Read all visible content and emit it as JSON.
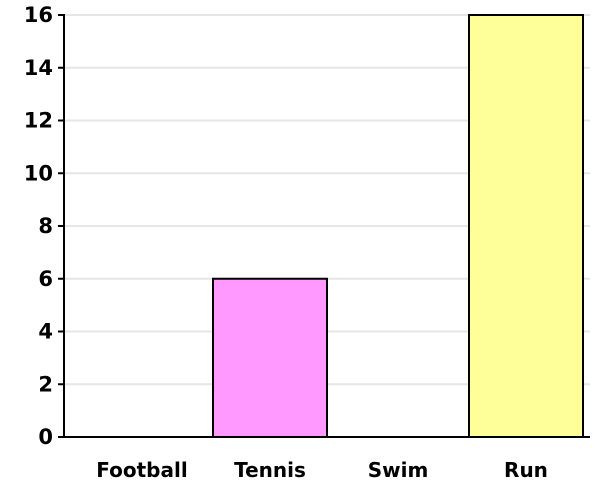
{
  "chart_data": {
    "type": "bar",
    "categories": [
      "Football",
      "Tennis",
      "Swim",
      "Run"
    ],
    "values": [
      0,
      6,
      0,
      16
    ],
    "bar_colors": [
      "#ff99ff",
      "#ff99ff",
      "#ffff99",
      "#ffff99"
    ],
    "title": "",
    "xlabel": "",
    "ylabel": "",
    "ylim": [
      0,
      16
    ],
    "yticks": [
      "0",
      "2",
      "4",
      "6",
      "8",
      "10",
      "12",
      "14",
      "16"
    ],
    "grid": true,
    "grid_color": "#e6e6e6",
    "axis_color": "#000000",
    "legend": "none"
  }
}
